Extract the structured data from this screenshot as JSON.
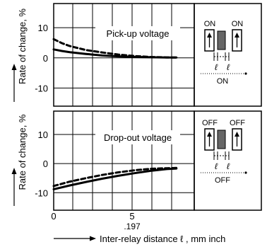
{
  "chart_data": [
    {
      "type": "line",
      "title": "Pick-up voltage",
      "ylabel": "Rate of change, %",
      "xlabel": "",
      "xlim": [
        0,
        8.7
      ],
      "ylim": [
        -16,
        18
      ],
      "yticks": [
        "10",
        "0",
        "-10"
      ],
      "grid": true,
      "series": [
        {
          "style": "solid",
          "x": [
            0,
            0.5,
            1,
            2,
            3,
            4,
            5,
            6,
            7,
            7.6
          ],
          "y": [
            2.8,
            2.3,
            1.9,
            1.3,
            0.8,
            0.5,
            0.3,
            0.2,
            0.1,
            0.1
          ]
        },
        {
          "style": "dashed",
          "x": [
            0,
            0.5,
            1,
            2,
            3,
            4,
            5,
            6,
            7,
            7.6
          ],
          "y": [
            6.2,
            4.9,
            3.9,
            2.6,
            1.8,
            1.1,
            0.6,
            0.3,
            0.15,
            0.1
          ]
        }
      ],
      "inset": {
        "left": "ON",
        "right": "ON",
        "caption": "ON",
        "dim": "ℓ"
      }
    },
    {
      "type": "line",
      "title": "Drop-out voltage",
      "ylabel": "Rate of change, %",
      "xlabel": "Inter-relay distance ℓ , mm inch",
      "xlim": [
        0,
        8.7
      ],
      "ylim": [
        -16,
        18
      ],
      "yticks": [
        "10",
        "0",
        "-10"
      ],
      "xticks": [
        "0",
        "5"
      ],
      "xtick_sub": ".197",
      "grid": true,
      "series": [
        {
          "style": "solid",
          "x": [
            0,
            1,
            2,
            3,
            4,
            5,
            6,
            7,
            7.6
          ],
          "y": [
            -8.8,
            -7.5,
            -6.3,
            -5.2,
            -4.2,
            -3.3,
            -2.5,
            -1.9,
            -1.7
          ]
        },
        {
          "style": "dashed",
          "x": [
            0,
            1,
            2,
            3,
            4,
            5,
            6,
            7,
            7.6
          ],
          "y": [
            -7.7,
            -6.2,
            -5.0,
            -3.9,
            -3.0,
            -2.3,
            -1.8,
            -1.6,
            -1.5
          ]
        }
      ],
      "inset": {
        "left": "OFF",
        "right": "OFF",
        "caption": "OFF",
        "dim": "ℓ"
      }
    }
  ]
}
